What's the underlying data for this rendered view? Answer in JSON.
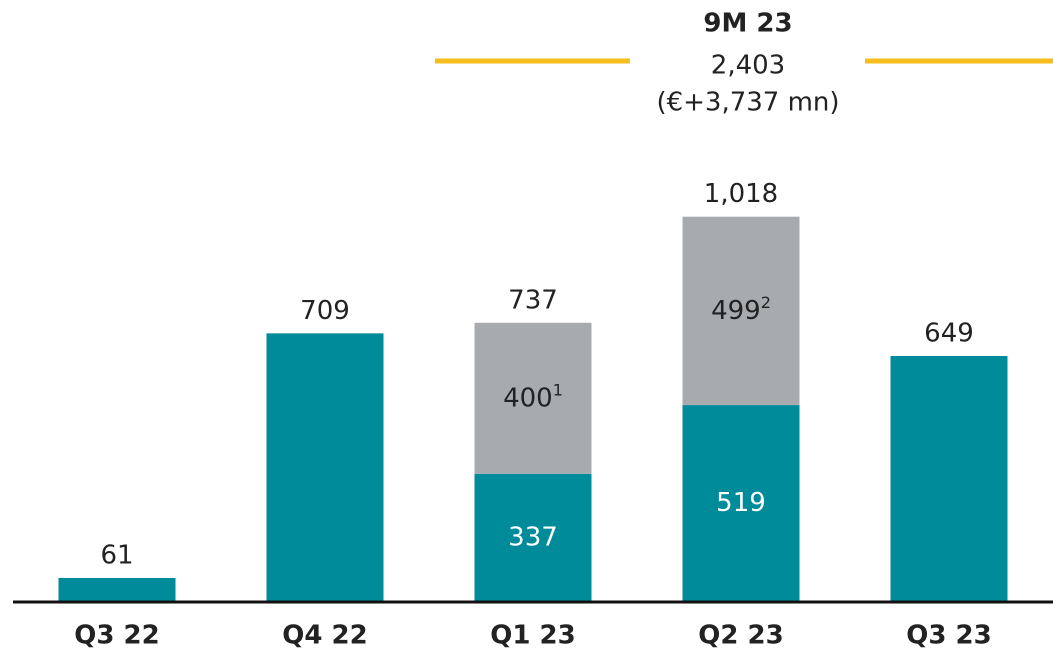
{
  "chart_data": {
    "type": "stacked_bar",
    "categories": [
      "Q3 22",
      "Q4 22",
      "Q1 23",
      "Q2 23",
      "Q3 23"
    ],
    "series": [
      {
        "color": "#008b9a",
        "values": [
          61,
          709,
          337,
          519,
          649
        ]
      },
      {
        "color": "#a7abae",
        "values": [
          null,
          null,
          400,
          499,
          null
        ],
        "footnote_markers": [
          null,
          null,
          "1",
          "2",
          null
        ]
      }
    ],
    "totals": {
      "values": [
        61,
        709,
        737,
        1018,
        649
      ],
      "value_labels": [
        "61",
        "709",
        "737",
        "1,018",
        "649"
      ]
    },
    "ylim": [
      0,
      1200
    ],
    "annotation": {
      "title": "9M 23",
      "value": 2403,
      "value_label": "2,403",
      "note": "(€+3,737 mn)",
      "color": "#f5be1e"
    }
  }
}
